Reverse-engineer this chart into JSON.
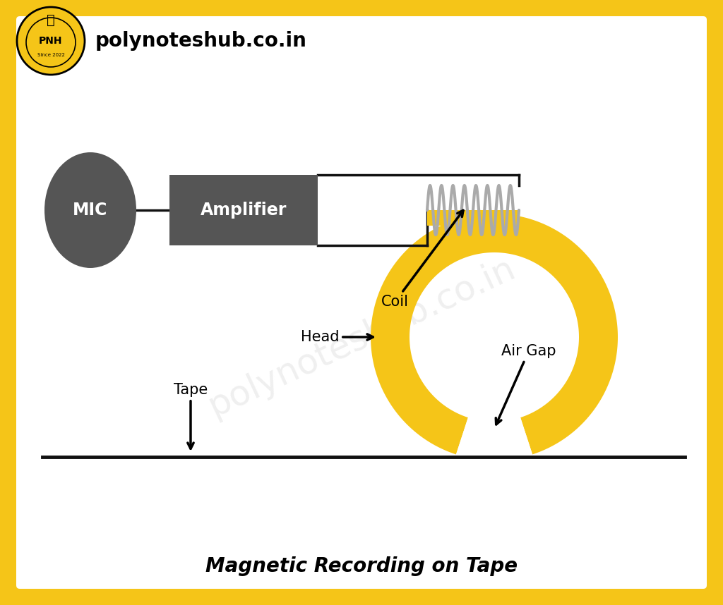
{
  "bg_outer_color": "#F5C518",
  "bg_inner_color": "#FFFFFF",
  "mic_color": "#555555",
  "amp_color": "#555555",
  "ring_color": "#F5C518",
  "coil_color": "#AAAAAA",
  "tape_color": "#111111",
  "line_color": "#111111",
  "title": "Magnetic Recording on Tape",
  "title_fontsize": 20,
  "watermark": "polynoteshub.co.in",
  "header_text": "polynoteshub.co.in"
}
